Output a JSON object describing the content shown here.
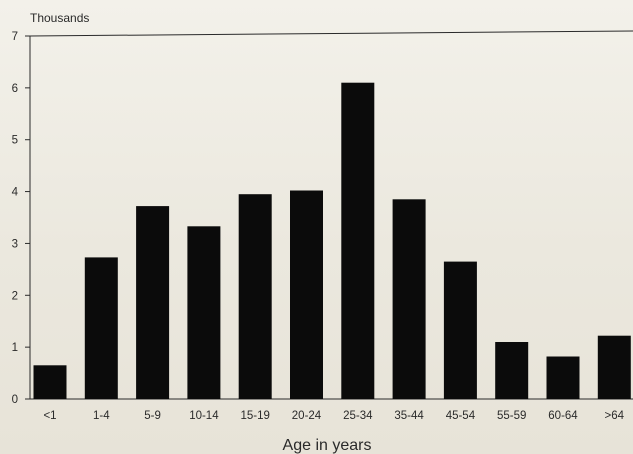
{
  "chart_data": {
    "type": "bar",
    "title": "",
    "y_unit_label": "Thousands",
    "xlabel": "Age in years",
    "ylabel": "",
    "ylim": [
      0,
      7
    ],
    "y_ticks": [
      "0",
      "1",
      "2",
      "3",
      "4",
      "5",
      "6",
      "7"
    ],
    "categories": [
      "<1",
      "1-4",
      "5-9",
      "10-14",
      "15-19",
      "20-24",
      "25-34",
      "35-44",
      "45-54",
      "55-59",
      "60-64",
      ">64"
    ],
    "values": [
      0.65,
      2.73,
      3.72,
      3.33,
      3.95,
      4.02,
      6.1,
      3.85,
      2.65,
      1.1,
      0.82,
      1.22
    ],
    "grid": false,
    "legend": "none",
    "bar_color": "#0b0b0b"
  }
}
